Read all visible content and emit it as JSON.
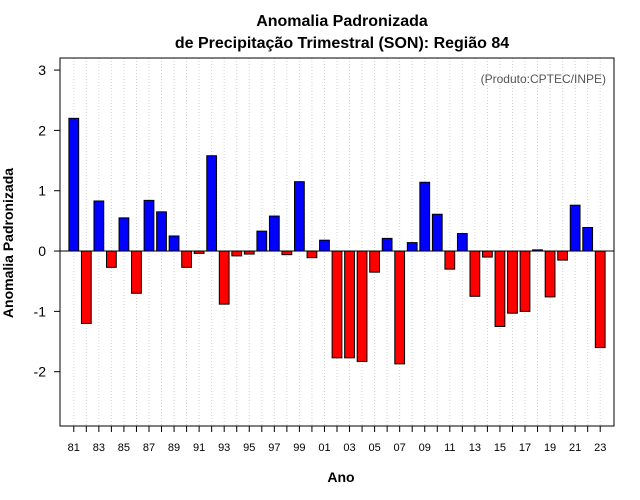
{
  "chart_data": {
    "type": "bar",
    "title_line1": "Anomalia Padronizada",
    "title_line2": "de Precipitação Trimestral (SON): Região 84",
    "credit": "(Produto:CPTEC/INPE)",
    "xlabel": "Ano",
    "ylabel": "Anomalia Padronizada",
    "ylim": [
      -2.9,
      3.2
    ],
    "yticks": [
      -2,
      -1,
      0,
      1,
      2,
      3
    ],
    "ytick_labels": [
      "-2",
      "-1",
      "0",
      "1",
      "2",
      "3"
    ],
    "categories": [
      "81",
      "82",
      "83",
      "84",
      "85",
      "86",
      "87",
      "88",
      "89",
      "90",
      "91",
      "92",
      "93",
      "94",
      "95",
      "96",
      "97",
      "98",
      "99",
      "00",
      "01",
      "02",
      "03",
      "04",
      "05",
      "06",
      "07",
      "08",
      "09",
      "10",
      "11",
      "12",
      "13",
      "14",
      "15",
      "16",
      "17",
      "18",
      "19",
      "20",
      "21",
      "22",
      "23"
    ],
    "tick_labels": [
      "81",
      "83",
      "85",
      "87",
      "89",
      "91",
      "93",
      "95",
      "97",
      "99",
      "01",
      "03",
      "05",
      "07",
      "09",
      "11",
      "13",
      "15",
      "17",
      "19",
      "21",
      "23"
    ],
    "values": [
      2.2,
      -1.2,
      0.83,
      -0.27,
      0.55,
      -0.7,
      0.84,
      0.65,
      0.25,
      -0.27,
      -0.04,
      1.58,
      -0.88,
      -0.08,
      -0.05,
      0.33,
      0.58,
      -0.06,
      1.15,
      -0.11,
      0.18,
      -1.77,
      -1.77,
      -1.83,
      -0.35,
      0.21,
      -1.87,
      0.14,
      1.14,
      0.61,
      -0.3,
      0.29,
      -0.75,
      -0.1,
      -1.25,
      -1.03,
      -1.0,
      0.02,
      -0.76,
      -0.15,
      0.76,
      0.39,
      -1.6
    ],
    "positive_color": "#0000ff",
    "negative_color": "#ff0000",
    "grid": true
  }
}
